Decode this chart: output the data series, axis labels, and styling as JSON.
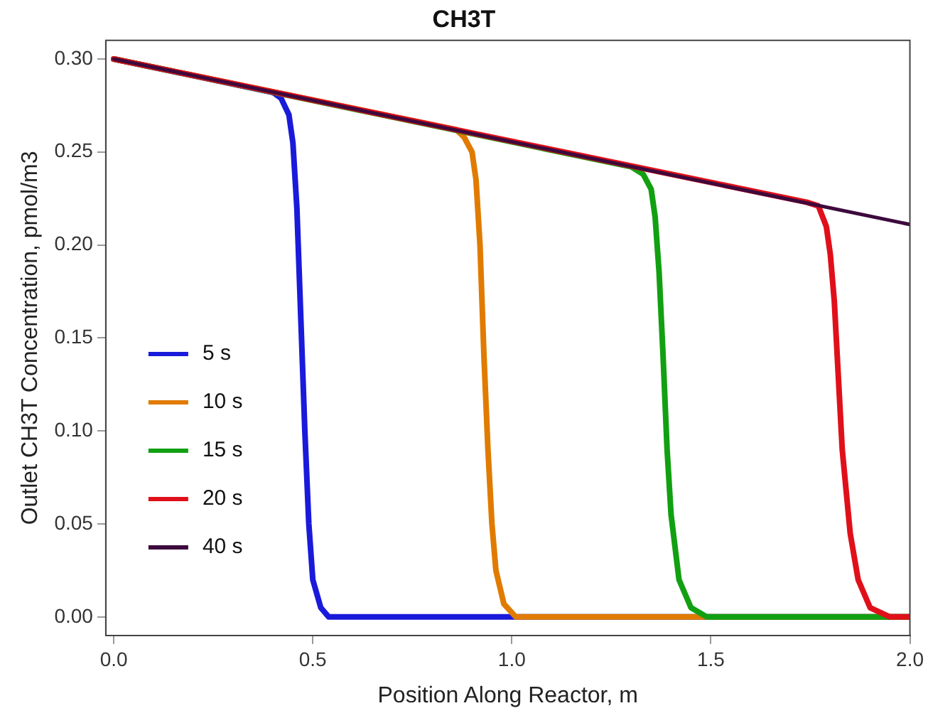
{
  "chart_data": {
    "type": "line",
    "title": "CH3T",
    "xlabel": "Position Along Reactor, m",
    "ylabel": "Outlet CH3T Concentration, pmol/m3",
    "xlim": [
      -0.02,
      2.0
    ],
    "ylim": [
      -0.01,
      0.31
    ],
    "xticks": [
      {
        "value": 0,
        "label": "0.0"
      },
      {
        "value": 0.5,
        "label": "0.5"
      },
      {
        "value": 1,
        "label": "1.0"
      },
      {
        "value": 1.5,
        "label": "1.5"
      },
      {
        "value": 2,
        "label": "2.0"
      }
    ],
    "yticks": [
      {
        "value": 0,
        "label": "0.00"
      },
      {
        "value": 0.05,
        "label": "0.05"
      },
      {
        "value": 0.1,
        "label": "0.10"
      },
      {
        "value": 0.15,
        "label": "0.15"
      },
      {
        "value": 0.2,
        "label": "0.20"
      },
      {
        "value": 0.25,
        "label": "0.25"
      },
      {
        "value": 0.3,
        "label": "0.30"
      }
    ],
    "grid": false,
    "legend": "bottom left",
    "marker": "none",
    "line_style": "solid",
    "series": [
      {
        "name": "5 s",
        "color": "#1a1adb",
        "x": [
          0,
          0.4,
          0.42,
          0.44,
          0.45,
          0.46,
          0.47,
          0.48,
          0.49,
          0.5,
          0.52,
          0.54,
          2.0
        ],
        "values": [
          0.3,
          0.282,
          0.279,
          0.27,
          0.255,
          0.22,
          0.16,
          0.1,
          0.05,
          0.02,
          0.005,
          0,
          0
        ]
      },
      {
        "name": "10 s",
        "color": "#e07b00",
        "x": [
          0,
          0.86,
          0.88,
          0.9,
          0.91,
          0.92,
          0.93,
          0.94,
          0.95,
          0.96,
          0.98,
          1.01,
          2.0
        ],
        "values": [
          0.3,
          0.262,
          0.258,
          0.25,
          0.235,
          0.2,
          0.14,
          0.09,
          0.05,
          0.025,
          0.007,
          0,
          0
        ]
      },
      {
        "name": "15 s",
        "color": "#12a012",
        "x": [
          0,
          1.3,
          1.33,
          1.35,
          1.36,
          1.37,
          1.38,
          1.39,
          1.4,
          1.42,
          1.45,
          1.49,
          2.0
        ],
        "values": [
          0.3,
          0.242,
          0.238,
          0.23,
          0.215,
          0.185,
          0.14,
          0.09,
          0.055,
          0.02,
          0.005,
          0,
          0
        ]
      },
      {
        "name": "20 s",
        "color": "#e0101a",
        "x": [
          0,
          1.74,
          1.77,
          1.79,
          1.8,
          1.81,
          1.82,
          1.83,
          1.85,
          1.87,
          1.9,
          1.95,
          2.0
        ],
        "values": [
          0.3,
          0.223,
          0.221,
          0.21,
          0.195,
          0.17,
          0.13,
          0.09,
          0.045,
          0.02,
          0.005,
          0,
          0
        ]
      },
      {
        "name": "40 s",
        "color": "#3d0a3d",
        "x": [
          0,
          2.0
        ],
        "values": [
          0.3,
          0.211
        ]
      }
    ]
  }
}
